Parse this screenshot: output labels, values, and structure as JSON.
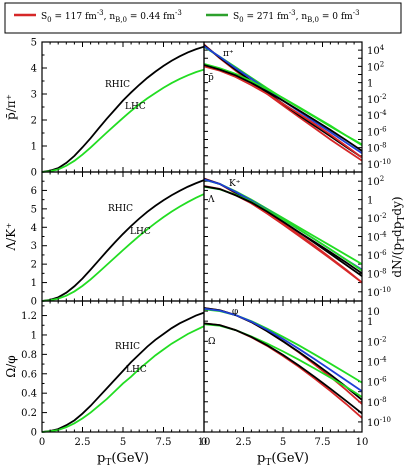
{
  "legend": {
    "entries": [
      {
        "name": "S0 = 117 fm-3, nB,0 = 0.44 fm-3",
        "main": "S",
        "sub1": "0",
        "mid1": " = 117 fm",
        "sup1": "-3",
        "mid2": ", n",
        "sub2": "B,0",
        "mid3": " = 0.44 fm",
        "sup2": "-3",
        "color": "#d62728"
      },
      {
        "name": "S0 = 271 fm-3, nB,0 = 0 fm-3",
        "main": "S",
        "sub1": "0",
        "mid1": " = 271 fm",
        "sup1": "-3",
        "mid2": ", n",
        "sub2": "B,0",
        "mid3": " = 0 fm",
        "sup2": "-3",
        "color": "#2ca02c"
      }
    ]
  },
  "colors": {
    "red": "#d62728",
    "green": "#22dd22",
    "black": "#000000",
    "blue": "#1f3fd6"
  },
  "chart_data": [
    {
      "type": "line",
      "panel": "ratio-pbar-pi",
      "ylabel": "p̄/π⁺",
      "xlim": [
        0,
        10
      ],
      "ylim": [
        0,
        5
      ],
      "xticks": [
        "0",
        "2.5",
        "5",
        "7.5",
        "10"
      ],
      "yticks": [
        0,
        1,
        2,
        3,
        4,
        5
      ],
      "series": [
        {
          "name": "RHIC",
          "color": "black",
          "x": [
            0,
            0.5,
            1,
            1.5,
            2,
            2.5,
            3,
            3.5,
            4,
            4.5,
            5,
            5.5,
            6,
            6.5,
            7,
            7.5,
            8,
            8.5,
            9,
            9.5,
            10
          ],
          "y": [
            0,
            0.05,
            0.15,
            0.35,
            0.62,
            0.95,
            1.3,
            1.68,
            2.05,
            2.4,
            2.75,
            3.06,
            3.35,
            3.62,
            3.86,
            4.08,
            4.28,
            4.45,
            4.6,
            4.72,
            4.82
          ]
        },
        {
          "name": "LHC",
          "color": "green",
          "x": [
            0,
            0.5,
            1,
            1.5,
            2,
            2.5,
            3,
            3.5,
            4,
            4.5,
            5,
            5.5,
            6,
            6.5,
            7,
            7.5,
            8,
            8.5,
            9,
            9.5,
            10
          ],
          "y": [
            0,
            0.03,
            0.1,
            0.24,
            0.43,
            0.67,
            0.94,
            1.23,
            1.52,
            1.8,
            2.08,
            2.35,
            2.6,
            2.83,
            3.04,
            3.24,
            3.42,
            3.58,
            3.72,
            3.84,
            3.94
          ]
        }
      ]
    },
    {
      "type": "line",
      "panel": "ratio-lambda-k",
      "ylabel": "Λ/K⁺",
      "xlim": [
        0,
        10
      ],
      "ylim": [
        0,
        7
      ],
      "xticks": [
        "0",
        "2.5",
        "5",
        "7.5",
        "10"
      ],
      "yticks": [
        0,
        1,
        2,
        3,
        4,
        5,
        6
      ],
      "series": [
        {
          "name": "RHIC",
          "color": "black",
          "x": [
            0,
            0.5,
            1,
            1.5,
            2,
            2.5,
            3,
            3.5,
            4,
            4.5,
            5,
            5.5,
            6,
            6.5,
            7,
            7.5,
            8,
            8.5,
            9,
            9.5,
            10
          ],
          "y": [
            0,
            0.06,
            0.2,
            0.45,
            0.8,
            1.22,
            1.7,
            2.2,
            2.7,
            3.18,
            3.64,
            4.07,
            4.47,
            4.84,
            5.17,
            5.47,
            5.74,
            5.98,
            6.2,
            6.39,
            6.56
          ]
        },
        {
          "name": "LHC",
          "color": "green",
          "x": [
            0,
            0.5,
            1,
            1.5,
            2,
            2.5,
            3,
            3.5,
            4,
            4.5,
            5,
            5.5,
            6,
            6.5,
            7,
            7.5,
            8,
            8.5,
            9,
            9.5,
            10
          ],
          "y": [
            0,
            0.04,
            0.13,
            0.29,
            0.52,
            0.82,
            1.17,
            1.56,
            1.96,
            2.36,
            2.76,
            3.15,
            3.53,
            3.89,
            4.23,
            4.55,
            4.85,
            5.12,
            5.37,
            5.6,
            5.8
          ]
        }
      ]
    },
    {
      "type": "line",
      "panel": "ratio-omega-phi",
      "ylabel": "Ω/φ",
      "xlim": [
        0,
        10
      ],
      "ylim": [
        0,
        1.35
      ],
      "xticks": [
        "0",
        "2.5",
        "5",
        "7.5",
        "10"
      ],
      "yticks": [
        "0",
        "0.2",
        "0.4",
        "0.6",
        "0.8",
        "1",
        "1.2"
      ],
      "series": [
        {
          "name": "RHIC",
          "color": "black",
          "x": [
            0,
            0.5,
            1,
            1.5,
            2,
            2.5,
            3,
            3.5,
            4,
            4.5,
            5,
            5.5,
            6,
            6.5,
            7,
            7.5,
            8,
            8.5,
            9,
            9.5,
            10
          ],
          "y": [
            0,
            0.01,
            0.03,
            0.07,
            0.12,
            0.19,
            0.27,
            0.36,
            0.45,
            0.54,
            0.63,
            0.72,
            0.8,
            0.88,
            0.95,
            1.01,
            1.07,
            1.12,
            1.16,
            1.2,
            1.23
          ]
        },
        {
          "name": "LHC",
          "color": "green",
          "x": [
            0,
            0.5,
            1,
            1.5,
            2,
            2.5,
            3,
            3.5,
            4,
            4.5,
            5,
            5.5,
            6,
            6.5,
            7,
            7.5,
            8,
            8.5,
            9,
            9.5,
            10
          ],
          "y": [
            0,
            0.007,
            0.02,
            0.05,
            0.09,
            0.14,
            0.2,
            0.27,
            0.34,
            0.42,
            0.5,
            0.57,
            0.65,
            0.72,
            0.79,
            0.85,
            0.91,
            0.96,
            1.01,
            1.05,
            1.09
          ]
        }
      ]
    },
    {
      "type": "line",
      "panel": "spectra-pi-pbar",
      "ylabel": "dN/(pTdpTdy)",
      "yscale": "log",
      "xlim": [
        0,
        10
      ],
      "ylim": [
        1e-11,
        100000.0
      ],
      "xticks": [
        "0",
        "2.5",
        "5",
        "7.5",
        "10"
      ],
      "yticks": [
        "10-10",
        "10-8",
        "10-6",
        "10-4",
        "10-2",
        "1",
        "102",
        "104"
      ],
      "labels": [
        "π⁺",
        "p̄"
      ],
      "series": [
        {
          "color": "red",
          "x": [
            0,
            1,
            2,
            3,
            4,
            5,
            6,
            7,
            8,
            9,
            10
          ],
          "y": [
            50000.0,
            1000.0,
            30.0,
            1,
            0.04,
            0.0015,
            6e-05,
            2.5e-06,
            1e-07,
            5e-09,
            2.5e-10
          ]
        },
        {
          "color": "green",
          "x": [
            0,
            1,
            2,
            3,
            4,
            5,
            6,
            7,
            8,
            9,
            10
          ],
          "y": [
            25000.0,
            1500.0,
            80.0,
            4,
            0.2,
            0.012,
            0.0008,
            6e-05,
            4e-06,
            3e-07,
            2.5e-08
          ]
        },
        {
          "color": "black",
          "x": [
            0,
            1,
            2,
            3,
            4,
            5,
            6,
            7,
            8,
            9,
            10
          ],
          "y": [
            40000.0,
            1200.0,
            40.0,
            1.5,
            0.06,
            0.0025,
            0.0001,
            5e-06,
            2.5e-07,
            1.2e-08,
            6e-10
          ]
        },
        {
          "color": "blue",
          "x": [
            0,
            1,
            2,
            3,
            4,
            5,
            6,
            7,
            8,
            9,
            10
          ],
          "y": [
            30000.0,
            1500.0,
            60.0,
            3,
            0.12,
            0.006,
            0.0003,
            1.5e-05,
            8e-07,
            4e-08,
            2e-09
          ]
        },
        {
          "color": "red",
          "x": [
            0,
            1,
            2,
            3,
            4,
            5,
            6,
            7,
            8,
            9,
            10
          ],
          "y": [
            100.0,
            30.0,
            5,
            0.5,
            0.04,
            0.0025,
            0.00015,
            8e-06,
            4e-07,
            1.6e-08,
            6e-10
          ]
        },
        {
          "color": "green",
          "x": [
            0,
            1,
            2,
            3,
            4,
            5,
            6,
            7,
            8,
            9,
            10
          ],
          "y": [
            200.0,
            60.0,
            12.0,
            1.5,
            0.15,
            0.013,
            0.001,
            7e-05,
            5e-06,
            3e-07,
            2e-08
          ]
        },
        {
          "color": "black",
          "x": [
            0,
            1,
            2,
            3,
            4,
            5,
            6,
            7,
            8,
            9,
            10
          ],
          "y": [
            150.0,
            40.0,
            8,
            0.9,
            0.08,
            0.006,
            0.0004,
            2.5e-05,
            1.5e-06,
            8e-08,
            4e-09
          ]
        }
      ]
    },
    {
      "type": "line",
      "panel": "spectra-k-lambda",
      "ylabel": "dN/(pTdpTdy)",
      "yscale": "log",
      "xlim": [
        0,
        10
      ],
      "ylim": [
        1e-11,
        1000.0
      ],
      "xticks": [
        "0",
        "2.5",
        "5",
        "7.5",
        "10"
      ],
      "yticks": [
        "10-10",
        "10-8",
        "10-6",
        "10-4",
        "10-2",
        "1",
        "102"
      ],
      "labels": [
        "K⁺",
        "Λ"
      ],
      "series": [
        {
          "color": "red",
          "x": [
            0,
            1,
            2,
            3,
            4,
            5,
            6,
            7,
            8,
            9,
            10
          ],
          "y": [
            200.0,
            50.0,
            5,
            0.4,
            0.03,
            0.002,
            0.00012,
            7e-06,
            4e-07,
            2e-08,
            1e-09
          ]
        },
        {
          "color": "green",
          "x": [
            0,
            1,
            2,
            3,
            4,
            5,
            6,
            7,
            8,
            9,
            10
          ],
          "y": [
            150.0,
            50.0,
            8,
            1,
            0.1,
            0.01,
            0.001,
            0.0001,
            1e-05,
            1e-06,
            1e-07
          ]
        },
        {
          "color": "black",
          "x": [
            0,
            1,
            2,
            3,
            4,
            5,
            6,
            7,
            8,
            9,
            10
          ],
          "y": [
            180.0,
            50.0,
            6,
            0.6,
            0.05,
            0.004,
            0.0003,
            2.5e-05,
            2e-06,
            1.5e-07,
            1e-08
          ]
        },
        {
          "color": "blue",
          "x": [
            0,
            1,
            2,
            3,
            4,
            5,
            6,
            7,
            8,
            9,
            10
          ],
          "y": [
            160.0,
            50.0,
            7,
            0.8,
            0.08,
            0.007,
            0.0006,
            5e-05,
            4e-06,
            3e-07,
            2.5e-08
          ]
        },
        {
          "color": "red",
          "x": [
            0,
            1,
            2,
            3,
            4,
            5,
            6,
            7,
            8,
            9,
            10
          ],
          "y": [
            30.0,
            15.0,
            3,
            0.4,
            0.035,
            0.0025,
            0.00017,
            1e-05,
            5e-07,
            2.5e-08,
            1e-09
          ]
        },
        {
          "color": "green",
          "x": [
            0,
            1,
            2,
            3,
            4,
            5,
            6,
            7,
            8,
            9,
            10
          ],
          "y": [
            25.0,
            13.0,
            3.5,
            0.6,
            0.07,
            0.007,
            0.0006,
            5e-05,
            4e-06,
            3e-07,
            2e-08
          ]
        },
        {
          "color": "black",
          "x": [
            0,
            1,
            2,
            3,
            4,
            5,
            6,
            7,
            8,
            9,
            10
          ],
          "y": [
            28.0,
            14.0,
            3,
            0.5,
            0.05,
            0.004,
            0.0003,
            2e-05,
            1.3e-06,
            8e-08,
            5e-09
          ]
        }
      ]
    },
    {
      "type": "line",
      "panel": "spectra-phi-omega",
      "ylabel": "dN/(pTdpTdy)",
      "yscale": "log",
      "xlim": [
        0,
        10
      ],
      "ylim": [
        1e-11,
        100.0
      ],
      "xticks": [
        "0",
        "2.5",
        "5",
        "7.5",
        "10"
      ],
      "yticks": [
        "10-10",
        "10-8",
        "10-6",
        "10-4",
        "10-2",
        "1",
        "10"
      ],
      "labels": [
        "φ",
        "Ω"
      ],
      "series": [
        {
          "color": "red",
          "x": [
            0,
            1,
            2,
            3,
            4,
            5,
            6,
            7,
            8,
            9,
            10
          ],
          "y": [
            20.0,
            12.0,
            4,
            0.8,
            0.1,
            0.01,
            0.0008,
            5e-05,
            3e-06,
            1.5e-07,
            6e-09
          ]
        },
        {
          "color": "green",
          "x": [
            0,
            1,
            2,
            3,
            4,
            5,
            6,
            7,
            8,
            9,
            10
          ],
          "y": [
            15.0,
            10.0,
            4,
            1,
            0.18,
            0.028,
            0.004,
            0.0005,
            6e-05,
            7e-06,
            8e-07
          ]
        },
        {
          "color": "black",
          "x": [
            0,
            1,
            2,
            3,
            4,
            5,
            6,
            7,
            8,
            9,
            10
          ],
          "y": [
            20.0,
            12.0,
            4,
            0.8,
            0.1,
            0.01,
            0.0009,
            7e-05,
            5e-06,
            3e-07,
            1.5e-08
          ]
        },
        {
          "color": "blue",
          "x": [
            0,
            1,
            2,
            3,
            4,
            5,
            6,
            7,
            8,
            9,
            10
          ],
          "y": [
            17.0,
            11.0,
            4,
            0.9,
            0.14,
            0.017,
            0.0018,
            0.00017,
            1.5e-05,
            1.3e-06,
            1.1e-07
          ]
        },
        {
          "color": "red",
          "x": [
            0,
            1,
            2,
            3,
            4,
            5,
            6,
            7,
            8,
            9,
            10
          ],
          "y": [
            0.6,
            0.4,
            0.13,
            0.025,
            0.0035,
            0.00035,
            3e-05,
            2e-06,
            1.2e-07,
            6e-09,
            2.5e-10
          ]
        },
        {
          "color": "green",
          "x": [
            0,
            1,
            2,
            3,
            4,
            5,
            6,
            7,
            8,
            9,
            10
          ],
          "y": [
            0.5,
            0.35,
            0.13,
            0.03,
            0.006,
            0.001,
            0.00015,
            2e-05,
            2.5e-06,
            3e-07,
            3e-08
          ]
        },
        {
          "color": "black",
          "x": [
            0,
            1,
            2,
            3,
            4,
            5,
            6,
            7,
            8,
            9,
            10
          ],
          "y": [
            0.6,
            0.4,
            0.13,
            0.027,
            0.004,
            0.00045,
            4e-05,
            3e-06,
            2e-07,
            1.2e-08,
            7e-10
          ]
        }
      ]
    }
  ],
  "axes": {
    "left_ylabels": [
      "p̄/π⁺",
      "Λ/K⁺",
      "Ω/φ"
    ],
    "right_ylabel": {
      "main": "dN/(p",
      "sub1": "T",
      "mid": "dp",
      "sub2": "T",
      "end": "dy)"
    },
    "xlabel": {
      "main": "p",
      "sub": "T",
      "end": "(GeV)"
    }
  },
  "curve_labels": {
    "rhic": "RHIC",
    "lhc": "LHC"
  }
}
